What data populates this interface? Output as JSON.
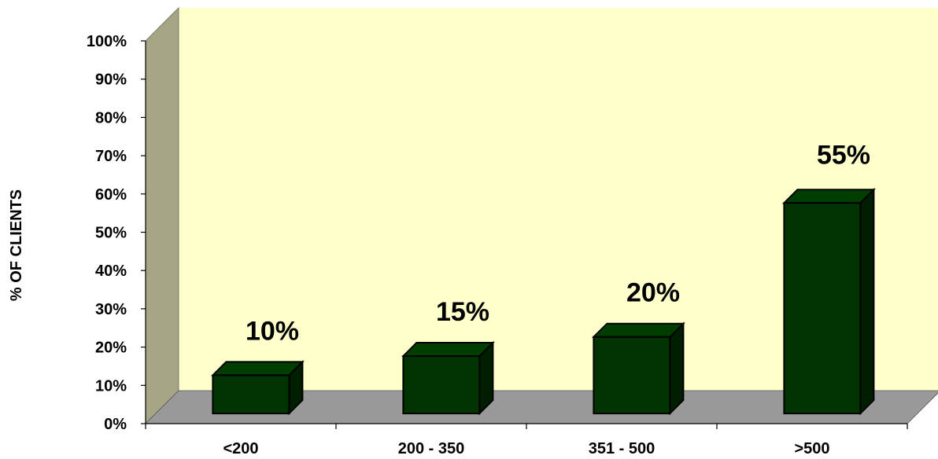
{
  "chart_data": {
    "type": "bar",
    "title": "",
    "xlabel": "",
    "ylabel": "% OF CLIENTS",
    "categories": [
      "<200",
      "200 - 350",
      "351 - 500",
      ">500"
    ],
    "values": [
      10,
      15,
      20,
      55
    ],
    "data_labels": [
      "10%",
      "15%",
      "20%",
      "55%"
    ],
    "ylim": [
      0,
      100
    ],
    "y_ticks": [
      "0%",
      "10%",
      "20%",
      "30%",
      "40%",
      "50%",
      "60%",
      "70%",
      "80%",
      "90%",
      "100%"
    ],
    "style": "3d-column",
    "grid": false,
    "legend": "none",
    "colors": {
      "bar_front": "#003300",
      "bar_top": "#003d00",
      "bar_side": "#001f00",
      "back_wall": "#ffffcc",
      "side_wall": "#a6a685",
      "floor": "#999999",
      "outline": "#000000"
    }
  }
}
